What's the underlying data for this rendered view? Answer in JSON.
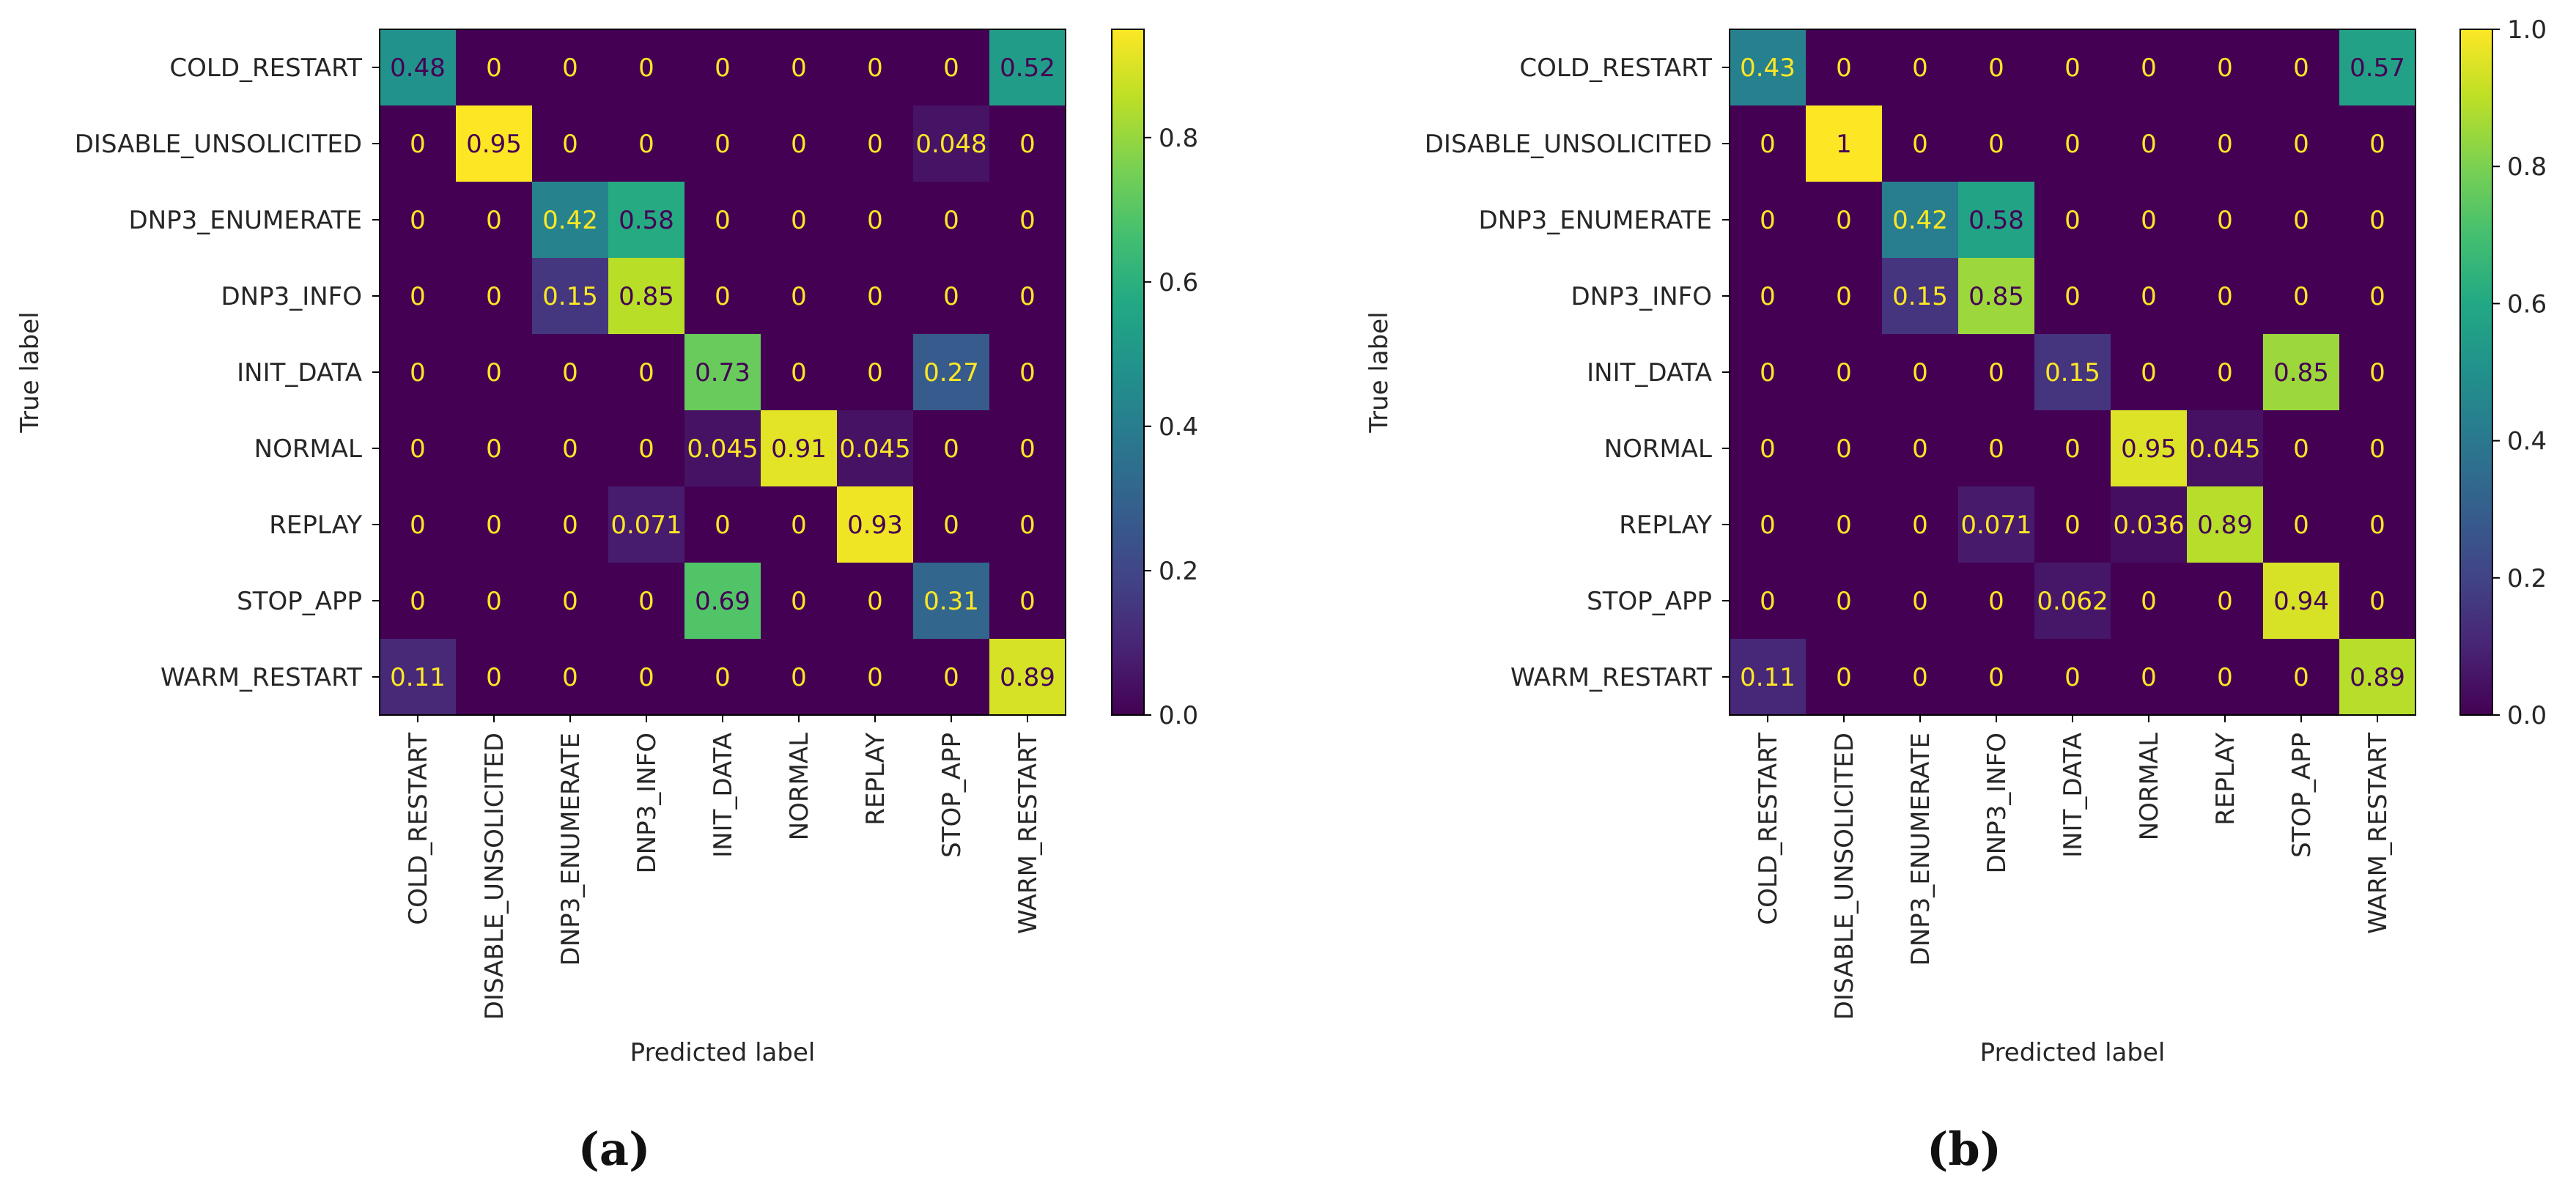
{
  "chart_data": [
    {
      "type": "heatmap",
      "panel_label": "(a)",
      "xlabel": "Predicted label",
      "ylabel": "True label",
      "row_labels": [
        "COLD_RESTART",
        "DISABLE_UNSOLICITED",
        "DNP3_ENUMERATE",
        "DNP3_INFO",
        "INIT_DATA",
        "NORMAL",
        "REPLAY",
        "STOP_APP",
        "WARM_RESTART"
      ],
      "col_labels": [
        "COLD_RESTART",
        "DISABLE_UNSOLICITED",
        "DNP3_ENUMERATE",
        "DNP3_INFO",
        "INIT_DATA",
        "NORMAL",
        "REPLAY",
        "STOP_APP",
        "WARM_RESTART"
      ],
      "values": [
        [
          0.48,
          0,
          0,
          0,
          0,
          0,
          0,
          0,
          0.52
        ],
        [
          0,
          0.95,
          0,
          0,
          0,
          0,
          0,
          0.048,
          0
        ],
        [
          0,
          0,
          0.42,
          0.58,
          0,
          0,
          0,
          0,
          0
        ],
        [
          0,
          0,
          0.15,
          0.85,
          0,
          0,
          0,
          0,
          0
        ],
        [
          0,
          0,
          0,
          0,
          0.73,
          0,
          0,
          0.27,
          0
        ],
        [
          0,
          0,
          0,
          0,
          0.045,
          0.91,
          0.045,
          0,
          0
        ],
        [
          0,
          0,
          0,
          0.071,
          0,
          0,
          0.93,
          0,
          0
        ],
        [
          0,
          0,
          0,
          0,
          0.69,
          0,
          0,
          0.31,
          0
        ],
        [
          0.11,
          0,
          0,
          0,
          0,
          0,
          0,
          0,
          0.89
        ]
      ],
      "cell_labels": [
        [
          "0.48",
          "0",
          "0",
          "0",
          "0",
          "0",
          "0",
          "0",
          "0.52"
        ],
        [
          "0",
          "0.95",
          "0",
          "0",
          "0",
          "0",
          "0",
          "0.048",
          "0"
        ],
        [
          "0",
          "0",
          "0.42",
          "0.58",
          "0",
          "0",
          "0",
          "0",
          "0"
        ],
        [
          "0",
          "0",
          "0.15",
          "0.85",
          "0",
          "0",
          "0",
          "0",
          "0"
        ],
        [
          "0",
          "0",
          "0",
          "0",
          "0.73",
          "0",
          "0",
          "0.27",
          "0"
        ],
        [
          "0",
          "0",
          "0",
          "0",
          "0.045",
          "0.91",
          "0.045",
          "0",
          "0"
        ],
        [
          "0",
          "0",
          "0",
          "0.071",
          "0",
          "0",
          "0.93",
          "0",
          "0"
        ],
        [
          "0",
          "0",
          "0",
          "0",
          "0.69",
          "0",
          "0",
          "0.31",
          "0"
        ],
        [
          "0.11",
          "0",
          "0",
          "0",
          "0",
          "0",
          "0",
          "0",
          "0.89"
        ]
      ],
      "colorbar": {
        "range": [
          0,
          0.95
        ],
        "ticks": [
          0.0,
          0.2,
          0.4,
          0.6,
          0.8
        ],
        "tick_labels": [
          "0.0",
          "0.2",
          "0.4",
          "0.6",
          "0.8"
        ]
      },
      "colormap": "viridis"
    },
    {
      "type": "heatmap",
      "panel_label": "(b)",
      "xlabel": "Predicted label",
      "ylabel": "True label",
      "row_labels": [
        "COLD_RESTART",
        "DISABLE_UNSOLICITED",
        "DNP3_ENUMERATE",
        "DNP3_INFO",
        "INIT_DATA",
        "NORMAL",
        "REPLAY",
        "STOP_APP",
        "WARM_RESTART"
      ],
      "col_labels": [
        "COLD_RESTART",
        "DISABLE_UNSOLICITED",
        "DNP3_ENUMERATE",
        "DNP3_INFO",
        "INIT_DATA",
        "NORMAL",
        "REPLAY",
        "STOP_APP",
        "WARM_RESTART"
      ],
      "values": [
        [
          0.43,
          0,
          0,
          0,
          0,
          0,
          0,
          0,
          0.57
        ],
        [
          0,
          1,
          0,
          0,
          0,
          0,
          0,
          0,
          0
        ],
        [
          0,
          0,
          0.42,
          0.58,
          0,
          0,
          0,
          0,
          0
        ],
        [
          0,
          0,
          0.15,
          0.85,
          0,
          0,
          0,
          0,
          0
        ],
        [
          0,
          0,
          0,
          0,
          0.15,
          0,
          0,
          0.85,
          0
        ],
        [
          0,
          0,
          0,
          0,
          0,
          0.95,
          0.045,
          0,
          0
        ],
        [
          0,
          0,
          0,
          0.071,
          0,
          0.036,
          0.89,
          0,
          0
        ],
        [
          0,
          0,
          0,
          0,
          0.062,
          0,
          0,
          0.94,
          0
        ],
        [
          0.11,
          0,
          0,
          0,
          0,
          0,
          0,
          0,
          0.89
        ]
      ],
      "cell_labels": [
        [
          "0.43",
          "0",
          "0",
          "0",
          "0",
          "0",
          "0",
          "0",
          "0.57"
        ],
        [
          "0",
          "1",
          "0",
          "0",
          "0",
          "0",
          "0",
          "0",
          "0"
        ],
        [
          "0",
          "0",
          "0.42",
          "0.58",
          "0",
          "0",
          "0",
          "0",
          "0"
        ],
        [
          "0",
          "0",
          "0.15",
          "0.85",
          "0",
          "0",
          "0",
          "0",
          "0"
        ],
        [
          "0",
          "0",
          "0",
          "0",
          "0.15",
          "0",
          "0",
          "0.85",
          "0"
        ],
        [
          "0",
          "0",
          "0",
          "0",
          "0",
          "0.95",
          "0.045",
          "0",
          "0"
        ],
        [
          "0",
          "0",
          "0",
          "0.071",
          "0",
          "0.036",
          "0.89",
          "0",
          "0"
        ],
        [
          "0",
          "0",
          "0",
          "0",
          "0.062",
          "0",
          "0",
          "0.94",
          "0"
        ],
        [
          "0.11",
          "0",
          "0",
          "0",
          "0",
          "0",
          "0",
          "0",
          "0.89"
        ]
      ],
      "colorbar": {
        "range": [
          0,
          1.0
        ],
        "ticks": [
          0.0,
          0.2,
          0.4,
          0.6,
          0.8,
          1.0
        ],
        "tick_labels": [
          "0.0",
          "0.2",
          "0.4",
          "0.6",
          "0.8",
          "1.0"
        ]
      },
      "colormap": "viridis"
    }
  ]
}
